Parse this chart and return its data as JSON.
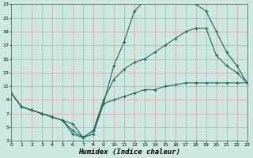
{
  "background_color": "#cce8e0",
  "grid_color": "#d4a0a0",
  "line_color": "#1a6b5a",
  "marker": "+",
  "markersize": 3,
  "linewidth": 0.8,
  "xlabel": "Humidex (Indice chaleur)",
  "xlabel_fontsize": 6.5,
  "xlabel_fontweight": "bold",
  "xlim": [
    0,
    23
  ],
  "ylim": [
    3,
    23
  ],
  "xticks": [
    0,
    1,
    2,
    3,
    4,
    5,
    6,
    7,
    8,
    9,
    10,
    11,
    12,
    13,
    14,
    15,
    16,
    17,
    18,
    19,
    20,
    21,
    22,
    23
  ],
  "yticks": [
    3,
    5,
    7,
    9,
    11,
    13,
    15,
    17,
    19,
    21,
    23
  ],
  "tick_fontsize": 4.5,
  "line1_x": [
    0,
    1,
    2,
    3,
    4,
    5,
    6,
    7,
    8,
    9,
    10,
    11,
    12,
    13,
    14,
    15,
    16,
    17,
    18,
    19,
    20,
    21,
    22,
    23
  ],
  "line1_y": [
    10,
    8,
    7.5,
    7,
    6.5,
    6,
    4.0,
    3.5,
    4.0,
    8.5,
    9.0,
    9.5,
    10.0,
    10.5,
    10.5,
    11.0,
    11.2,
    11.5,
    11.5,
    11.5,
    11.5,
    11.5,
    11.5,
    11.5
  ],
  "line2_x": [
    0,
    1,
    2,
    3,
    4,
    5,
    6,
    7,
    8,
    9,
    10,
    11,
    12,
    13,
    14,
    15,
    16,
    17,
    18,
    19,
    20,
    21,
    22,
    23
  ],
  "line2_y": [
    10,
    8,
    7.5,
    7,
    6.5,
    6,
    4.5,
    3.5,
    4.5,
    8.5,
    14.0,
    17.5,
    22.0,
    23.5,
    23.5,
    23.5,
    23.5,
    23.5,
    23.0,
    22.0,
    19.0,
    16.0,
    14.0,
    11.5
  ],
  "line3_x": [
    0,
    1,
    2,
    3,
    4,
    5,
    6,
    7,
    8,
    9,
    10,
    11,
    12,
    13,
    14,
    15,
    16,
    17,
    18,
    19,
    20,
    21,
    22,
    23
  ],
  "line3_y": [
    10,
    8,
    7.5,
    7,
    6.5,
    6,
    5.5,
    3.5,
    4.5,
    9.0,
    12.0,
    13.5,
    14.5,
    15.0,
    16.0,
    17.0,
    18.0,
    19.0,
    19.5,
    19.5,
    15.5,
    14.0,
    13.0,
    11.5
  ]
}
